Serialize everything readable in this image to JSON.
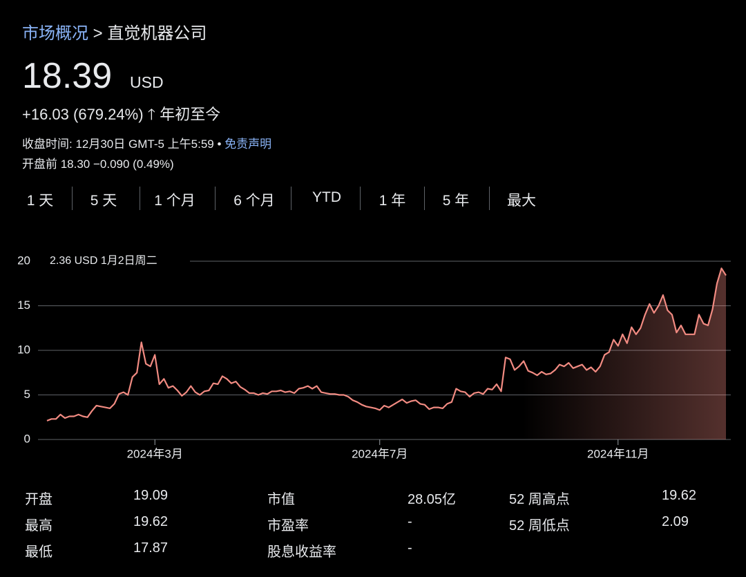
{
  "breadcrumb": {
    "link": "市场概况",
    "separator": ">",
    "current": "直觉机器公司"
  },
  "price": "18.39",
  "currency": "USD",
  "change": "+16.03 (679.24%)",
  "period": "年初至今",
  "close_info": "收盘时间: 12月30日 GMT-5 上午5:59",
  "bullet": "•",
  "disclaimer": "免责声明",
  "premarket": "开盘前 18.30 −0.090 (0.49%)",
  "ranges": [
    "1 天",
    "5 天",
    "1 个月",
    "6 个月",
    "YTD",
    "1 年",
    "5 年",
    "最大"
  ],
  "chart_data": {
    "type": "line",
    "annotation": "2.36 USD  1月2日周二",
    "color": "#f28b82",
    "values": [
      2.1,
      2.3,
      2.3,
      2.8,
      2.4,
      2.6,
      2.6,
      2.8,
      2.6,
      2.5,
      3.2,
      3.8,
      3.7,
      3.6,
      3.5,
      4.0,
      5.1,
      5.3,
      5.0,
      7.0,
      7.5,
      10.9,
      8.5,
      8.2,
      9.5,
      6.2,
      6.8,
      5.8,
      6.0,
      5.5,
      4.9,
      5.3,
      6.0,
      5.3,
      5.0,
      5.4,
      5.5,
      6.3,
      6.2,
      7.1,
      6.8,
      6.3,
      6.5,
      5.9,
      5.6,
      5.2,
      5.2,
      5.0,
      5.2,
      5.1,
      5.4,
      5.4,
      5.5,
      5.3,
      5.4,
      5.2,
      5.7,
      5.8,
      6.0,
      5.7,
      6.0,
      5.3,
      5.2,
      5.1,
      5.1,
      5.0,
      5.0,
      4.8,
      4.4,
      4.2,
      3.9,
      3.7,
      3.6,
      3.5,
      3.3,
      3.8,
      3.6,
      3.9,
      4.2,
      4.5,
      4.1,
      4.3,
      4.4,
      4.0,
      3.9,
      3.4,
      3.6,
      3.6,
      3.5,
      4.0,
      4.2,
      5.7,
      5.4,
      5.3,
      4.8,
      5.2,
      5.3,
      5.1,
      5.7,
      5.6,
      6.2,
      5.4,
      9.2,
      9.0,
      7.8,
      8.2,
      8.8,
      7.7,
      7.5,
      7.2,
      7.6,
      7.3,
      7.4,
      7.8,
      8.4,
      8.2,
      8.6,
      8.0,
      8.2,
      8.4,
      7.8,
      8.1,
      7.6,
      8.2,
      9.5,
      9.8,
      11.2,
      10.5,
      11.8,
      10.8,
      12.6,
      11.8,
      12.5,
      14.0,
      15.2,
      14.2,
      15.0,
      16.2,
      14.5,
      14.0,
      12.0,
      12.8,
      11.8,
      11.8,
      11.8,
      14.0,
      13.0,
      12.8,
      14.6,
      17.5,
      19.2,
      18.4
    ],
    "ylim": [
      0,
      20
    ],
    "yticks": [
      0,
      5,
      10,
      15,
      20
    ],
    "grid": true,
    "xticks": [
      {
        "value": 24,
        "label": "2024年3月"
      },
      {
        "value": 74,
        "label": "2024年7月"
      },
      {
        "value": 127,
        "label": "2024年11月"
      }
    ]
  },
  "stats": [
    [
      "开盘",
      "19.09",
      "市值",
      "28.05亿",
      "52 周高点",
      "19.62"
    ],
    [
      "最高",
      "19.62",
      "市盈率",
      "-",
      "52 周低点",
      "2.09"
    ],
    [
      "最低",
      "17.87",
      "股息收益率",
      "-"
    ]
  ]
}
